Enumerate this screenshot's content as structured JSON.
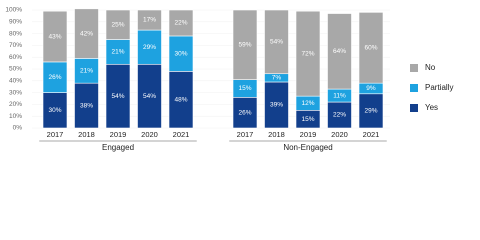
{
  "chart_data": {
    "type": "stacked_bar",
    "groups": [
      "Engaged",
      "Non-Engaged"
    ],
    "categories": [
      "2017",
      "2018",
      "2019",
      "2020",
      "2021",
      "2017",
      "2018",
      "2019",
      "2020",
      "2021"
    ],
    "series": [
      {
        "name": "Yes",
        "color": "#123f8c",
        "values": [
          30,
          38,
          54,
          54,
          48,
          26,
          39,
          15,
          22,
          29
        ],
        "value_labels": [
          "30%",
          "38%",
          "54%",
          "54%",
          "48%",
          "26%",
          "39%",
          "15%",
          "22%",
          "29%"
        ]
      },
      {
        "name": "Partially",
        "color": "#1ea2e0",
        "values": [
          26,
          21,
          21,
          29,
          30,
          15,
          7,
          12,
          11,
          9
        ],
        "value_labels": [
          "26%",
          "21%",
          "21%",
          "29%",
          "30%",
          "15%",
          "7%",
          "12%",
          "11%",
          "9%"
        ]
      },
      {
        "name": "No",
        "color": "#a8a8a8",
        "values": [
          43,
          42,
          25,
          17,
          22,
          59,
          54,
          72,
          64,
          60
        ],
        "value_labels": [
          "43%",
          "42%",
          "25%",
          "17%",
          "22%",
          "59%",
          "54%",
          "72%",
          "64%",
          "60%"
        ]
      }
    ],
    "ylim": [
      0,
      100
    ],
    "yticks": [
      {
        "value": 0,
        "label": "0%"
      },
      {
        "value": 10,
        "label": "10%"
      },
      {
        "value": 20,
        "label": "20%"
      },
      {
        "value": 30,
        "label": "30%"
      },
      {
        "value": 40,
        "label": "40%"
      },
      {
        "value": 50,
        "label": "50%"
      },
      {
        "value": 60,
        "label": "60%"
      },
      {
        "value": 70,
        "label": "70%"
      },
      {
        "value": 80,
        "label": "80%"
      },
      {
        "value": 90,
        "label": "90%"
      },
      {
        "value": 100,
        "label": "100%"
      }
    ],
    "grid": true
  }
}
